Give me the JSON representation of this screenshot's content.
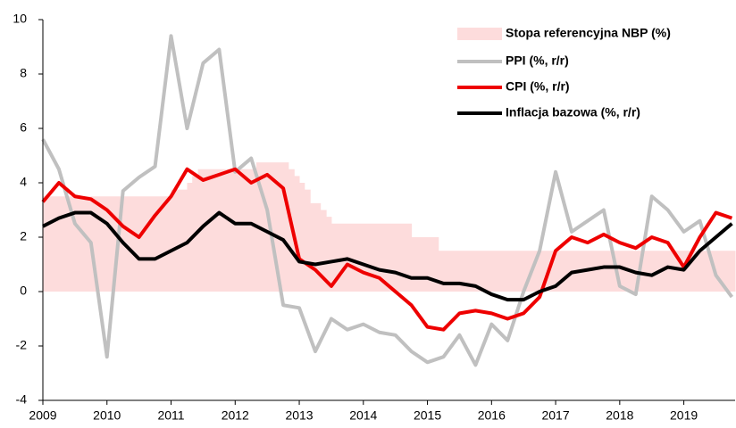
{
  "chart_data": {
    "type": "line",
    "xlim": [
      2009,
      2019.8
    ],
    "xticks": [
      2009,
      2010,
      2011,
      2012,
      2013,
      2014,
      2015,
      2016,
      2017,
      2018,
      2019
    ],
    "ylim": [
      -4,
      10
    ],
    "yticks": [
      -4,
      -2,
      0,
      2,
      4,
      6,
      8,
      10
    ],
    "legend": "top-right",
    "x": [
      2009,
      2009.25,
      2009.5,
      2009.75,
      2010,
      2010.25,
      2010.5,
      2010.75,
      2011,
      2011.25,
      2011.5,
      2011.75,
      2012,
      2012.25,
      2012.5,
      2012.75,
      2013,
      2013.25,
      2013.5,
      2013.75,
      2014,
      2014.25,
      2014.5,
      2014.75,
      2015,
      2015.25,
      2015.5,
      2015.75,
      2016,
      2016.25,
      2016.5,
      2016.75,
      2017,
      2017.25,
      2017.5,
      2017.75,
      2018,
      2018.25,
      2018.5,
      2018.75,
      2019,
      2019.25,
      2019.5,
      2019.75
    ],
    "series": [
      {
        "name": "Stopa referencyjna NBP (%)",
        "type": "step-area",
        "color": "#fddcdc",
        "x": [
          2009,
          2011,
          2011.25,
          2011.33,
          2011.42,
          2012.33,
          2012.83,
          2012.92,
          2013,
          2013.08,
          2013.17,
          2013.33,
          2013.42,
          2013.5,
          2014.75,
          2015.17
        ],
        "values": [
          3.5,
          3.75,
          4.0,
          4.25,
          4.5,
          4.75,
          4.5,
          4.25,
          4.0,
          3.75,
          3.25,
          3.0,
          2.75,
          2.5,
          2.0,
          1.5
        ]
      },
      {
        "name": "PPI (%, r/r)",
        "type": "line",
        "color": "#c0c0c0",
        "values": [
          5.6,
          4.5,
          2.5,
          1.8,
          -2.4,
          3.7,
          4.2,
          4.6,
          9.4,
          6.0,
          8.4,
          8.9,
          4.4,
          4.9,
          3.0,
          -0.5,
          -0.6,
          -2.2,
          -1.0,
          -1.4,
          -1.2,
          -1.5,
          -1.6,
          -2.2,
          -2.6,
          -2.4,
          -1.6,
          -2.7,
          -1.2,
          -1.8,
          0.0,
          1.5,
          4.4,
          2.2,
          2.6,
          3.0,
          0.2,
          -0.1,
          3.5,
          3.0,
          2.2,
          2.6,
          0.6,
          -0.2
        ]
      },
      {
        "name": "CPI (%, r/r)",
        "type": "line",
        "color": "#ee0000",
        "values": [
          3.3,
          4.0,
          3.5,
          3.4,
          3.0,
          2.4,
          2.0,
          2.8,
          3.5,
          4.5,
          4.1,
          4.3,
          4.5,
          4.0,
          4.3,
          3.8,
          1.2,
          0.8,
          0.2,
          1.0,
          0.7,
          0.5,
          0.0,
          -0.5,
          -1.3,
          -1.4,
          -0.8,
          -0.7,
          -0.8,
          -1.0,
          -0.8,
          -0.2,
          1.5,
          2.0,
          1.8,
          2.1,
          1.8,
          1.6,
          2.0,
          1.8,
          0.9,
          2.0,
          2.9,
          2.7
        ]
      },
      {
        "name": "Inflacja bazowa (%, r/r)",
        "type": "line",
        "color": "#000000",
        "values": [
          2.4,
          2.7,
          2.9,
          2.9,
          2.5,
          1.8,
          1.2,
          1.2,
          1.5,
          1.8,
          2.4,
          2.9,
          2.5,
          2.5,
          2.2,
          1.9,
          1.1,
          1.0,
          1.1,
          1.2,
          1.0,
          0.8,
          0.7,
          0.5,
          0.5,
          0.3,
          0.3,
          0.2,
          -0.1,
          -0.3,
          -0.3,
          0.0,
          0.2,
          0.7,
          0.8,
          0.9,
          0.9,
          0.7,
          0.6,
          0.9,
          0.8,
          1.5,
          2.0,
          2.5
        ]
      }
    ]
  }
}
